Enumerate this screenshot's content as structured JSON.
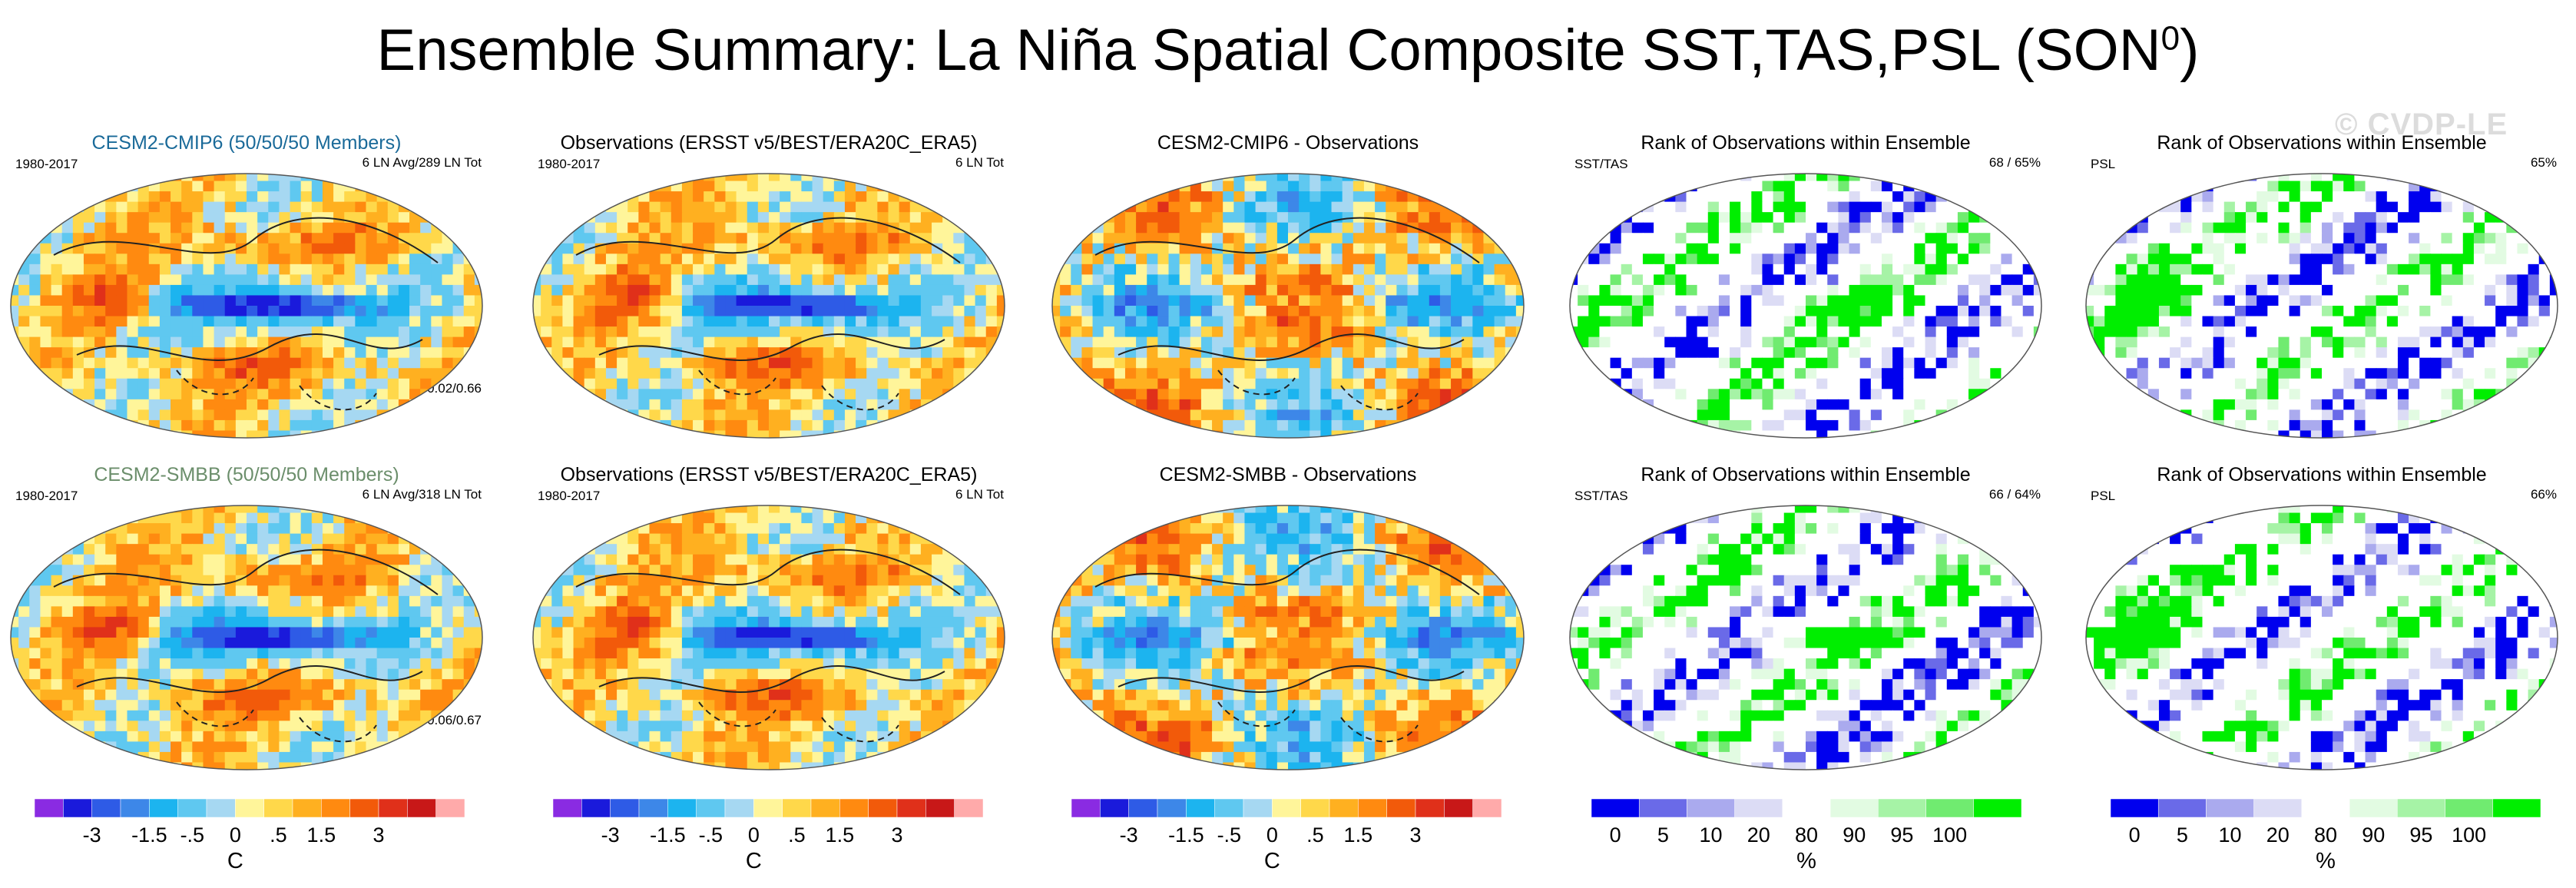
{
  "title": {
    "main": "Ensemble Summary: La Niña Spatial Composite SST,TAS,PSL (SON",
    "sup": "0",
    "close": ")"
  },
  "watermark": "© CVDP-LE",
  "colors": {
    "anomaly_scale": [
      "#8a2be2",
      "#1a1adb",
      "#2e5be6",
      "#3d87e8",
      "#1cb4ef",
      "#5fc8f0",
      "#a6d8f2",
      "#fff59a",
      "#ffd84a",
      "#ffb020",
      "#ff8a10",
      "#f25a0a",
      "#e0301a",
      "#c81818",
      "#ffaaaa"
    ],
    "rank_scale": [
      "#0000ee",
      "#6a6ae8",
      "#aaaaee",
      "#dcdcf5",
      "#ffffff",
      "#e2fbe2",
      "#a6f3a6",
      "#70eb70",
      "#00ee00"
    ]
  },
  "chart_data": [
    {
      "type": "heatmap",
      "panel": "r1c1",
      "title": "CESM2-CMIP6 (50/50/50 Members)",
      "title_color": "#1a6a99",
      "left_label": "1980-2017",
      "right_label": "6 LN Avg/289 LN Tot",
      "bottom_label": "r=0.85/-0.02/0.66",
      "field": "anomaly",
      "seed": 11
    },
    {
      "type": "heatmap",
      "panel": "r1c2",
      "title": "Observations (ERSST v5/BEST/ERA20C_ERA5)",
      "title_color": "#000000",
      "left_label": "1980-2017",
      "right_label": "6 LN Tot",
      "bottom_label": "",
      "field": "anomaly",
      "seed": 23
    },
    {
      "type": "heatmap",
      "panel": "r1c3",
      "title": "CESM2-CMIP6 - Observations",
      "title_color": "#000000",
      "left_label": "",
      "right_label": "",
      "bottom_label": "",
      "field": "difference",
      "seed": 37
    },
    {
      "type": "heatmap",
      "panel": "r1c4",
      "title": "Rank of Observations within Ensemble",
      "title_color": "#000000",
      "left_label": "SST/TAS",
      "right_label": "68 /  65%",
      "bottom_label": "",
      "field": "rank",
      "seed": 41
    },
    {
      "type": "heatmap",
      "panel": "r1c5",
      "title": "Rank of Observations within Ensemble",
      "title_color": "#000000",
      "left_label": "PSL",
      "right_label": "65%",
      "bottom_label": "",
      "field": "rank_psl",
      "seed": 53
    },
    {
      "type": "heatmap",
      "panel": "r2c1",
      "title": "CESM2-SMBB (50/50/50 Members)",
      "title_color": "#6b8e6b",
      "left_label": "1980-2017",
      "right_label": "6 LN Avg/318 LN Tot",
      "bottom_label": "r=0.85/-0.06/0.67",
      "field": "anomaly",
      "seed": 13
    },
    {
      "type": "heatmap",
      "panel": "r2c2",
      "title": "Observations (ERSST v5/BEST/ERA20C_ERA5)",
      "title_color": "#000000",
      "left_label": "1980-2017",
      "right_label": "6 LN Tot",
      "bottom_label": "",
      "field": "anomaly",
      "seed": 23
    },
    {
      "type": "heatmap",
      "panel": "r2c3",
      "title": "CESM2-SMBB - Observations",
      "title_color": "#000000",
      "left_label": "",
      "right_label": "",
      "bottom_label": "",
      "field": "difference",
      "seed": 59
    },
    {
      "type": "heatmap",
      "panel": "r2c4",
      "title": "Rank of Observations within Ensemble",
      "title_color": "#000000",
      "left_label": "SST/TAS",
      "right_label": "66 /  64%",
      "bottom_label": "",
      "field": "rank",
      "seed": 67
    },
    {
      "type": "heatmap",
      "panel": "r2c5",
      "title": "Rank of Observations within Ensemble",
      "title_color": "#000000",
      "left_label": "PSL",
      "right_label": "66%",
      "bottom_label": "",
      "field": "rank_psl",
      "seed": 71
    }
  ],
  "colorbars": [
    {
      "kind": "anomaly",
      "ticks": [
        "-3",
        "-1.5",
        "-.5",
        "0",
        ".5",
        "1.5",
        "3"
      ],
      "unit": "C"
    },
    {
      "kind": "anomaly",
      "ticks": [
        "-3",
        "-1.5",
        "-.5",
        "0",
        ".5",
        "1.5",
        "3"
      ],
      "unit": "C"
    },
    {
      "kind": "anomaly",
      "ticks": [
        "-3",
        "-1.5",
        "-.5",
        "0",
        ".5",
        "1.5",
        "3"
      ],
      "unit": "C"
    },
    {
      "kind": "rank",
      "ticks": [
        "0",
        "5",
        "10",
        "20",
        "80",
        "90",
        "95",
        "100"
      ],
      "unit": "%"
    },
    {
      "kind": "rank",
      "ticks": [
        "0",
        "5",
        "10",
        "20",
        "80",
        "90",
        "95",
        "100"
      ],
      "unit": "%"
    }
  ]
}
